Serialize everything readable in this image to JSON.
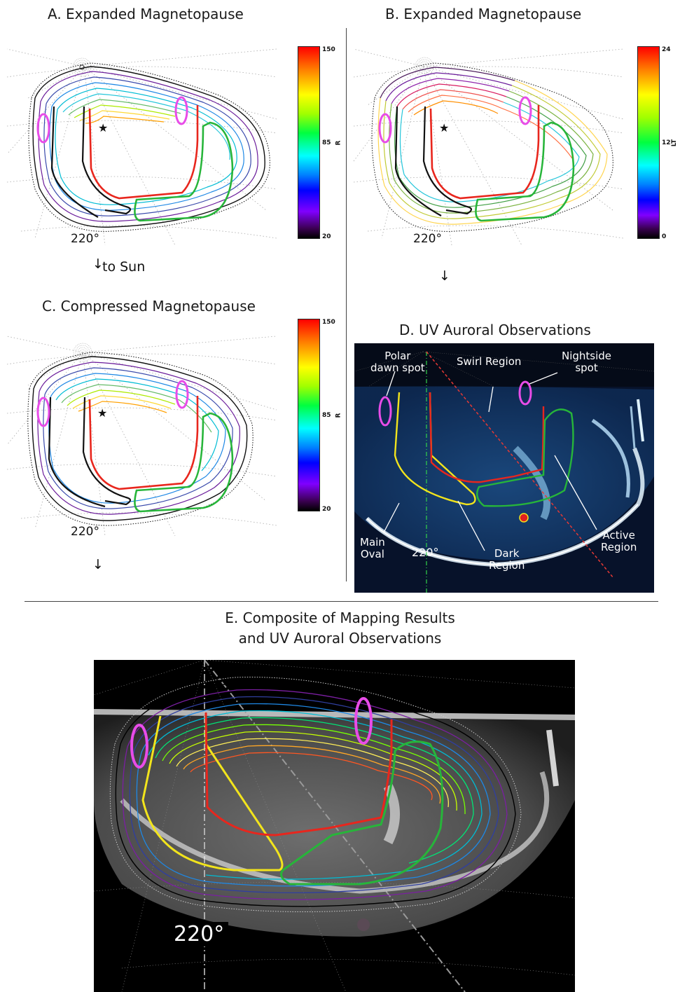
{
  "panels": {
    "a": {
      "title": "A. Expanded Magnetopause",
      "angle_label": "220°",
      "sun_label": "to Sun",
      "colorbar": {
        "label": "R",
        "ticks": [
          "150",
          "85",
          "20"
        ]
      }
    },
    "b": {
      "title": "B. Expanded Magnetopause",
      "angle_label": "220°",
      "colorbar": {
        "label": "LT",
        "ticks": [
          "24",
          "12",
          "0"
        ]
      }
    },
    "c": {
      "title": "C. Compressed Magnetopause",
      "angle_label": "220°",
      "colorbar": {
        "label": "R",
        "ticks": [
          "150",
          "85",
          "20"
        ]
      }
    },
    "d": {
      "title": "D. UV Auroral Observations",
      "angle_label": "220°",
      "labels": {
        "polar_dawn_spot": "Polar\ndawn spot",
        "swirl_region": "Swirl Region",
        "nightside_spot": "Nightside\nspot",
        "main_oval": "Main\nOval",
        "dark_region": "Dark\nRegion",
        "active_region": "Active\nRegion"
      }
    },
    "e": {
      "title_line1": "E. Composite of Mapping Results",
      "title_line2": "and UV Auroral Observations",
      "angle_label": "220°"
    }
  },
  "colors": {
    "red_boundary": "#e8261d",
    "green_boundary": "#27b53a",
    "yellow_boundary": "#f2e41c",
    "spot_magenta": "#e84ce8",
    "uv_background": "#0a1630",
    "uv_emission": "#5ab8ee"
  }
}
